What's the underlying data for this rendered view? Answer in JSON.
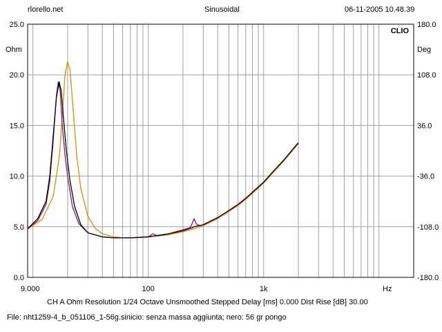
{
  "header": {
    "site": "rlorello.net",
    "mode": "Sinusoidal",
    "datetime": "06-11-2005 10.48.39"
  },
  "brand": "CLIO",
  "footer": {
    "settings": "CH A   Ohm   Resolution 1/24 Octave   Unsmoothed   Stepped     Delay [ms] 0.000   Dist Rise [dB] 30.00",
    "file": "File: nht1259-4_b_051106_1-56g.sinicio: senza massa aggiunta; nero: 56 gr pongo"
  },
  "chart_data": {
    "type": "line",
    "xscale": "log",
    "xlim": [
      9,
      20000
    ],
    "ylim": [
      0,
      25
    ],
    "y2lim": [
      -180,
      180
    ],
    "ylabel": "Ohm",
    "y2label": "Deg",
    "xunit": "Hz",
    "grid": true,
    "x_tick_labels": [
      {
        "value": 9,
        "label": "9.000"
      },
      {
        "value": 100,
        "label": "100"
      },
      {
        "value": 1000,
        "label": "1k"
      }
    ],
    "y_tick_labels": [
      "25.0",
      "20.0",
      "15.0",
      "10.0",
      "5.0",
      "0.0"
    ],
    "y_ticks": [
      25,
      20,
      15,
      10,
      5,
      0
    ],
    "y2_tick_labels": [
      "180.0",
      "108.0",
      "36.0",
      "-36.0",
      "-108.0",
      "-180.0"
    ],
    "y2_ticks": [
      180,
      108,
      36,
      -36,
      -108,
      -180
    ],
    "series": [
      {
        "color": "#e08a00",
        "points": [
          [
            9,
            4.8
          ],
          [
            12,
            5.7
          ],
          [
            15,
            8.0
          ],
          [
            17,
            12.0
          ],
          [
            18,
            16.0
          ],
          [
            19,
            20.0
          ],
          [
            20,
            21.3
          ],
          [
            21,
            20.5
          ],
          [
            22,
            17.5
          ],
          [
            24,
            12.0
          ],
          [
            26,
            8.8
          ],
          [
            30,
            6.0
          ],
          [
            35,
            4.8
          ],
          [
            40,
            4.3
          ],
          [
            50,
            4.0
          ],
          [
            60,
            3.9
          ],
          [
            80,
            3.9
          ],
          [
            100,
            4.0
          ],
          [
            150,
            4.2
          ],
          [
            200,
            4.5
          ],
          [
            250,
            4.8
          ],
          [
            300,
            5.1
          ],
          [
            400,
            5.8
          ],
          [
            500,
            6.5
          ],
          [
            600,
            7.1
          ],
          [
            700,
            7.7
          ],
          [
            800,
            8.3
          ],
          [
            1000,
            9.3
          ],
          [
            1200,
            10.3
          ],
          [
            1500,
            11.5
          ],
          [
            2000,
            13.2
          ]
        ]
      },
      {
        "color": "#7a1a7a",
        "points": [
          [
            9,
            4.8
          ],
          [
            11,
            5.6
          ],
          [
            13,
            7.2
          ],
          [
            14,
            9.5
          ],
          [
            15,
            13.5
          ],
          [
            16,
            18.0
          ],
          [
            16.6,
            19.3
          ],
          [
            17.2,
            18.5
          ],
          [
            18,
            15.0
          ],
          [
            19,
            12.0
          ],
          [
            20,
            10.0
          ],
          [
            22,
            7.0
          ],
          [
            25,
            5.3
          ],
          [
            30,
            4.4
          ],
          [
            40,
            4.0
          ],
          [
            50,
            3.9
          ],
          [
            70,
            3.9
          ],
          [
            100,
            4.0
          ],
          [
            110,
            4.3
          ],
          [
            120,
            4.1
          ],
          [
            150,
            4.3
          ],
          [
            200,
            4.7
          ],
          [
            230,
            4.9
          ],
          [
            240,
            5.3
          ],
          [
            250,
            5.8
          ],
          [
            260,
            5.3
          ],
          [
            280,
            5.1
          ],
          [
            300,
            5.2
          ],
          [
            400,
            5.9
          ],
          [
            500,
            6.6
          ],
          [
            600,
            7.2
          ],
          [
            700,
            7.8
          ],
          [
            800,
            8.4
          ],
          [
            1000,
            9.4
          ],
          [
            1200,
            10.4
          ],
          [
            1500,
            11.6
          ],
          [
            2000,
            13.3
          ]
        ]
      },
      {
        "color": "#000000",
        "points": [
          [
            9,
            4.8
          ],
          [
            11,
            5.8
          ],
          [
            13,
            7.5
          ],
          [
            14,
            10.0
          ],
          [
            15,
            14.0
          ],
          [
            16,
            17.8
          ],
          [
            16.9,
            19.3
          ],
          [
            17.6,
            18.4
          ],
          [
            18.5,
            15.5
          ],
          [
            19.5,
            12.5
          ],
          [
            21,
            9.5
          ],
          [
            23,
            7.0
          ],
          [
            26,
            5.2
          ],
          [
            30,
            4.4
          ],
          [
            40,
            4.0
          ],
          [
            50,
            3.9
          ],
          [
            70,
            3.9
          ],
          [
            100,
            4.0
          ],
          [
            150,
            4.3
          ],
          [
            200,
            4.6
          ],
          [
            240,
            4.9
          ],
          [
            250,
            5.0
          ],
          [
            300,
            5.2
          ],
          [
            400,
            5.9
          ],
          [
            500,
            6.6
          ],
          [
            600,
            7.2
          ],
          [
            700,
            7.8
          ],
          [
            800,
            8.4
          ],
          [
            1000,
            9.4
          ],
          [
            1200,
            10.4
          ],
          [
            1500,
            11.6
          ],
          [
            2000,
            13.3
          ]
        ]
      }
    ]
  }
}
